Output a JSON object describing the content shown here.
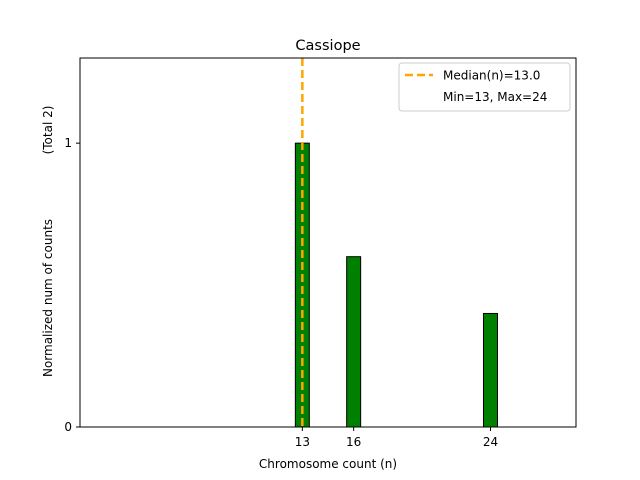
{
  "chart_data": {
    "type": "bar",
    "title": "Cassiope",
    "xlabel": "Chromosome count (n)",
    "ylabel": "Normalized num of counts",
    "ylabel_total": "(Total 2)",
    "x": [
      13,
      16,
      24
    ],
    "values": [
      1.0,
      0.6,
      0.4
    ],
    "xticks": [
      13,
      16,
      24
    ],
    "yticks": [
      0,
      1
    ],
    "xlim": [
      0,
      29
    ],
    "ylim": [
      0,
      1.3
    ],
    "grid": false,
    "legend_position": "top-right",
    "median": 13.0,
    "legend": [
      {
        "label": "Median(n)=13.0",
        "style": "dashed",
        "color": "#FFA500"
      },
      {
        "label": "Min=13, Max=24",
        "style": "none"
      }
    ],
    "colors": {
      "bar_fill": "#008000",
      "bar_edge": "#000000",
      "median_line": "#FFA500"
    }
  }
}
